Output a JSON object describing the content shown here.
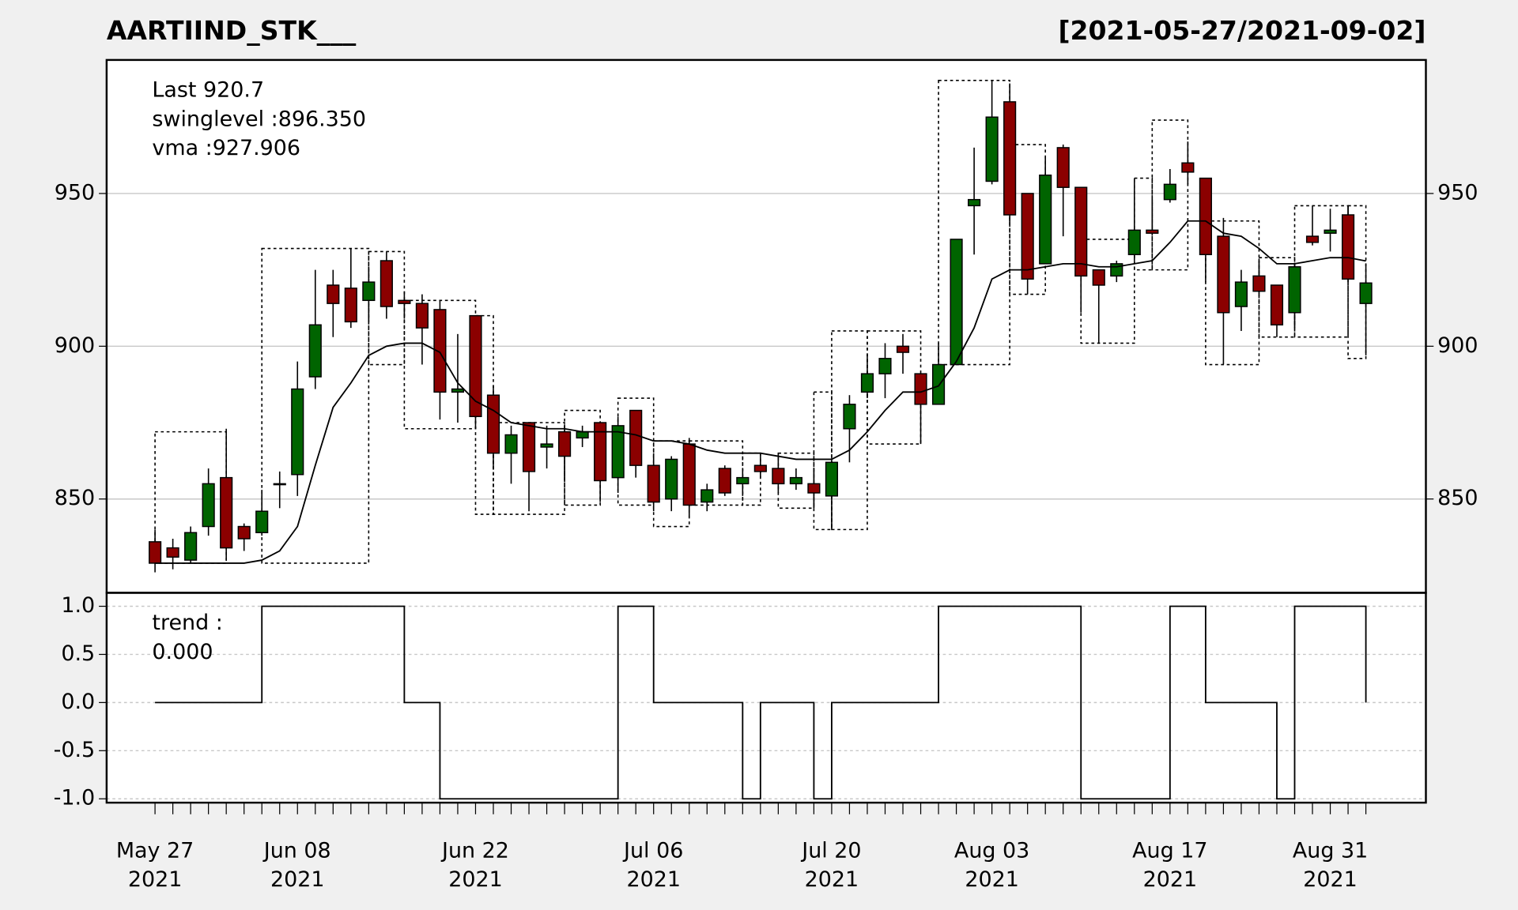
{
  "chart_data": [
    {
      "type": "candlestick",
      "title": "AARTIIND_STK___",
      "date_range": "[2021-05-27/2021-09-02]",
      "x": [
        "2021-05-27",
        "2021-05-28",
        "2021-05-31",
        "2021-06-01",
        "2021-06-02",
        "2021-06-03",
        "2021-06-04",
        "2021-06-07",
        "2021-06-08",
        "2021-06-09",
        "2021-06-10",
        "2021-06-11",
        "2021-06-14",
        "2021-06-15",
        "2021-06-16",
        "2021-06-17",
        "2021-06-18",
        "2021-06-21",
        "2021-06-22",
        "2021-06-23",
        "2021-06-24",
        "2021-06-25",
        "2021-06-28",
        "2021-06-29",
        "2021-06-30",
        "2021-07-01",
        "2021-07-02",
        "2021-07-05",
        "2021-07-06",
        "2021-07-07",
        "2021-07-08",
        "2021-07-09",
        "2021-07-12",
        "2021-07-13",
        "2021-07-14",
        "2021-07-15",
        "2021-07-16",
        "2021-07-19",
        "2021-07-20",
        "2021-07-22",
        "2021-07-23",
        "2021-07-26",
        "2021-07-27",
        "2021-07-28",
        "2021-07-29",
        "2021-07-30",
        "2021-08-02",
        "2021-08-03",
        "2021-08-04",
        "2021-08-05",
        "2021-08-06",
        "2021-08-09",
        "2021-08-10",
        "2021-08-11",
        "2021-08-12",
        "2021-08-13",
        "2021-08-16",
        "2021-08-17",
        "2021-08-18",
        "2021-08-20",
        "2021-08-23",
        "2021-08-24",
        "2021-08-25",
        "2021-08-26",
        "2021-08-27",
        "2021-08-30",
        "2021-08-31",
        "2021-09-01",
        "2021-09-02"
      ],
      "open": [
        836,
        834,
        830,
        841,
        857,
        841,
        839,
        855,
        858,
        890,
        920,
        919,
        915,
        928,
        915,
        914,
        912,
        885,
        910,
        884,
        865,
        875,
        867,
        872,
        870,
        875,
        857,
        879,
        861,
        850,
        868,
        849,
        860,
        855,
        861,
        860,
        855,
        855,
        851,
        873,
        885,
        891,
        900,
        891,
        881,
        894,
        946,
        954,
        980,
        950,
        927,
        965,
        952,
        925,
        923,
        930,
        938,
        948,
        960,
        955,
        936,
        913,
        923,
        920,
        911,
        936,
        937,
        943,
        914
      ],
      "high": [
        840,
        837,
        841,
        860,
        873,
        842,
        853,
        859,
        895,
        925,
        925,
        932,
        926,
        931,
        918,
        917,
        915,
        904,
        910,
        887,
        874,
        875,
        874,
        874,
        874,
        875,
        877,
        879,
        865,
        864,
        870,
        855,
        861,
        860,
        865,
        865,
        860,
        860,
        862,
        884,
        897,
        901,
        904,
        891,
        901,
        935,
        965,
        987,
        986,
        950,
        962,
        966,
        952,
        925,
        928,
        955,
        948,
        958,
        967,
        955,
        942,
        925,
        928,
        920,
        927,
        946,
        945,
        946,
        927
      ],
      "low": [
        826,
        827,
        829,
        838,
        830,
        833,
        838,
        847,
        851,
        886,
        903,
        906,
        908,
        909,
        909,
        894,
        876,
        875,
        873,
        860,
        855,
        846,
        860,
        856,
        867,
        849,
        852,
        857,
        846,
        846,
        844,
        846,
        851,
        851,
        857,
        852,
        853,
        847,
        840,
        862,
        883,
        883,
        891,
        868,
        881,
        894,
        930,
        953,
        940,
        917,
        927,
        936,
        911,
        901,
        921,
        928,
        937,
        947,
        953,
        921,
        894,
        905,
        917,
        903,
        906,
        933,
        931,
        921,
        897
      ],
      "close": [
        829,
        831,
        839,
        855,
        834,
        837,
        846,
        855,
        886,
        907,
        914,
        908,
        921,
        913,
        914,
        906,
        885,
        886,
        877,
        865,
        871,
        859,
        868,
        864,
        872,
        856,
        874,
        861,
        849,
        863,
        848,
        853,
        852,
        857,
        859,
        855,
        857,
        852,
        862,
        881,
        891,
        896,
        898,
        881,
        894,
        935,
        948,
        975,
        943,
        922,
        956,
        952,
        923,
        920,
        927,
        938,
        937,
        953,
        957,
        930,
        911,
        921,
        918,
        907,
        926,
        934,
        938,
        922,
        920.7
      ],
      "up_color": "#006400",
      "down_color": "#8b0000",
      "vma": [
        829,
        829,
        829,
        829,
        829,
        829,
        830,
        833,
        841,
        861,
        880,
        888,
        897,
        900,
        901,
        901,
        898,
        888,
        882,
        879,
        875,
        874,
        873,
        873,
        872,
        872,
        872,
        871,
        869,
        869,
        868,
        866,
        865,
        865,
        865,
        864,
        863,
        863,
        863,
        866,
        872,
        879,
        885,
        885,
        887,
        895,
        906,
        922,
        925,
        925,
        926,
        927,
        927,
        926,
        926,
        927,
        928,
        934,
        941,
        941,
        937,
        936,
        932,
        927,
        927,
        928,
        929,
        929,
        927.906
      ],
      "vma_color": "#000000",
      "swing_boxes": [
        {
          "start": "2021-05-27",
          "end": "2021-06-02",
          "high": 872,
          "low": 829
        },
        {
          "start": "2021-06-04",
          "end": "2021-06-14",
          "high": 932,
          "low": 829
        },
        {
          "start": "2021-06-14",
          "end": "2021-06-16",
          "high": 931,
          "low": 894
        },
        {
          "start": "2021-06-16",
          "end": "2021-06-22",
          "high": 915,
          "low": 873
        },
        {
          "start": "2021-06-22",
          "end": "2021-06-23",
          "high": 910,
          "low": 845
        },
        {
          "start": "2021-06-23",
          "end": "2021-06-29",
          "high": 875,
          "low": 845
        },
        {
          "start": "2021-06-29",
          "end": "2021-07-01",
          "high": 879,
          "low": 848
        },
        {
          "start": "2021-07-02",
          "end": "2021-07-06",
          "high": 883,
          "low": 848
        },
        {
          "start": "2021-07-06",
          "end": "2021-07-08",
          "high": 869,
          "low": 841
        },
        {
          "start": "2021-07-08",
          "end": "2021-07-13",
          "high": 869,
          "low": 848
        },
        {
          "start": "2021-07-13",
          "end": "2021-07-14",
          "high": 865,
          "low": 848
        },
        {
          "start": "2021-07-15",
          "end": "2021-07-19",
          "high": 865,
          "low": 847
        },
        {
          "start": "2021-07-19",
          "end": "2021-07-20",
          "high": 885,
          "low": 840
        },
        {
          "start": "2021-07-20",
          "end": "2021-07-23",
          "high": 905,
          "low": 840
        },
        {
          "start": "2021-07-23",
          "end": "2021-07-28",
          "high": 905,
          "low": 868
        },
        {
          "start": "2021-07-29",
          "end": "2021-08-04",
          "high": 987,
          "low": 894
        },
        {
          "start": "2021-08-04",
          "end": "2021-08-06",
          "high": 966,
          "low": 917
        },
        {
          "start": "2021-08-10",
          "end": "2021-08-13",
          "high": 935,
          "low": 901
        },
        {
          "start": "2021-08-13",
          "end": "2021-08-16",
          "high": 955,
          "low": 925
        },
        {
          "start": "2021-08-16",
          "end": "2021-08-18",
          "high": 974,
          "low": 925
        },
        {
          "start": "2021-08-20",
          "end": "2021-08-25",
          "high": 941,
          "low": 894
        },
        {
          "start": "2021-08-25",
          "end": "2021-08-27",
          "high": 929,
          "low": 903
        },
        {
          "start": "2021-08-27",
          "end": "2021-09-01",
          "high": 946,
          "low": 903
        },
        {
          "start": "2021-09-01",
          "end": "2021-09-02",
          "high": 946,
          "low": 896
        }
      ],
      "ylim": [
        819.3,
        993.7
      ],
      "yticks": [
        850,
        900,
        950
      ],
      "grid": true,
      "grid_style": "solid",
      "right_axis": true,
      "xticks": [
        {
          "value": "2021-05-27",
          "label": "May 27\n2021"
        },
        {
          "value": "2021-06-08",
          "label": "Jun 08\n2021"
        },
        {
          "value": "2021-06-22",
          "label": "Jun 22\n2021"
        },
        {
          "value": "2021-07-06",
          "label": "Jul 06\n2021"
        },
        {
          "value": "2021-07-20",
          "label": "Jul 20\n2021"
        },
        {
          "value": "2021-08-03",
          "label": "Aug 03\n2021"
        },
        {
          "value": "2021-08-17",
          "label": "Aug 17\n2021"
        },
        {
          "value": "2021-08-31",
          "label": "Aug 31\n2021"
        }
      ],
      "legend": [
        "Last 920.7",
        "swinglevel :896.350",
        "vma :927.906"
      ],
      "legend_colors": [
        "#006400",
        "#000000",
        "#000000"
      ]
    },
    {
      "type": "step",
      "name": "trend",
      "values": [
        0,
        0,
        0,
        0,
        0,
        0,
        1,
        1,
        1,
        1,
        1,
        1,
        1,
        1,
        0,
        0,
        -1,
        -1,
        -1,
        -1,
        -1,
        -1,
        -1,
        -1,
        -1,
        -1,
        1,
        1,
        0,
        0,
        0,
        0,
        0,
        -1,
        0,
        0,
        0,
        -1,
        0,
        0,
        0,
        0,
        0,
        0,
        1,
        1,
        1,
        1,
        1,
        1,
        1,
        1,
        -1,
        -1,
        -1,
        -1,
        -1,
        1,
        1,
        0,
        0,
        0,
        0,
        -1,
        1,
        1,
        1,
        1,
        0
      ],
      "color": "#000000",
      "ylim": [
        -1.04,
        1.14
      ],
      "yticks": [
        {
          "value": 1,
          "label": "1.0"
        },
        {
          "value": 0.5,
          "label": "0.5"
        },
        {
          "value": 0,
          "label": "0.0"
        },
        {
          "value": -0.5,
          "label": "-0.5"
        },
        {
          "value": -1,
          "label": "-1.0"
        }
      ],
      "grid": true,
      "grid_style": "dashed",
      "right_axis": false,
      "legend": [
        "trend :",
        "0.000"
      ],
      "legend_colors": [
        "#000000",
        "#000000"
      ]
    }
  ]
}
